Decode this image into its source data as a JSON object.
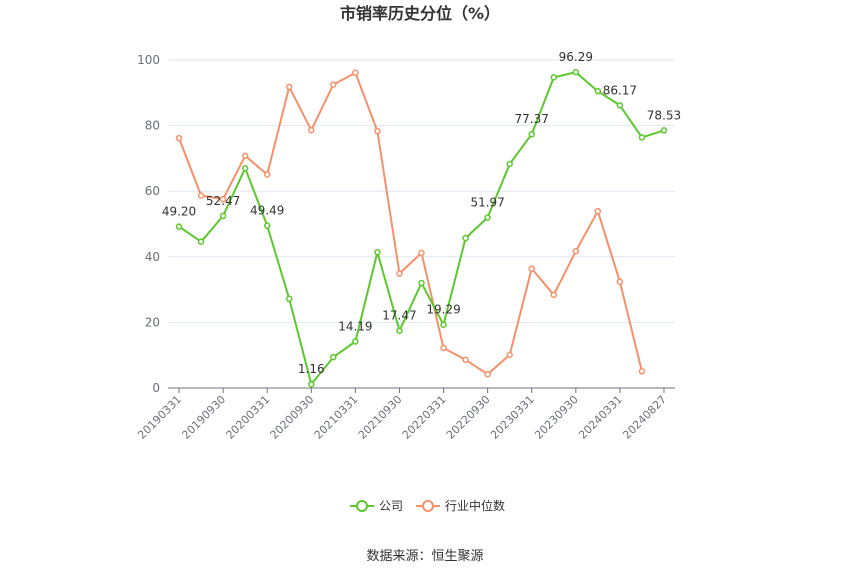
{
  "chart_data": {
    "type": "line",
    "title": "市销率历史分位（%）",
    "ylim": [
      0,
      100
    ],
    "yticks": [
      0,
      20,
      40,
      60,
      80,
      100
    ],
    "x_tick_labels": [
      "20190331",
      "20190930",
      "20200331",
      "20200930",
      "20210331",
      "20210930",
      "20220331",
      "20220930",
      "20230331",
      "20230930",
      "20240331",
      "20240827"
    ],
    "grid": true,
    "legend_position": "bottom-center",
    "series": [
      {
        "name": "公司",
        "color": "#5cc82e",
        "values": [
          49.2,
          44.6,
          52.47,
          67.0,
          49.49,
          27.2,
          1.16,
          9.4,
          14.19,
          41.4,
          17.47,
          32.0,
          19.29,
          45.7,
          51.97,
          68.3,
          77.37,
          94.7,
          96.29,
          90.5,
          86.17,
          76.4,
          78.53
        ],
        "labels": [
          "49.20",
          null,
          "52.47",
          null,
          "49.49",
          null,
          "1.16",
          null,
          "14.19",
          null,
          "17.47",
          null,
          "19.29",
          null,
          "51.97",
          null,
          "77.37",
          null,
          "96.29",
          null,
          "86.17",
          null,
          "78.53"
        ]
      },
      {
        "name": "行业中位数",
        "color": "#f5916a",
        "values": [
          76.2,
          58.7,
          57.6,
          70.8,
          65.1,
          91.8,
          78.6,
          92.5,
          96.1,
          78.3,
          34.9,
          41.2,
          12.2,
          8.6,
          4.2,
          10.1,
          36.4,
          28.4,
          41.7,
          53.9,
          32.4,
          5.1,
          null
        ]
      }
    ]
  },
  "source_text": "数据来源：恒生聚源"
}
